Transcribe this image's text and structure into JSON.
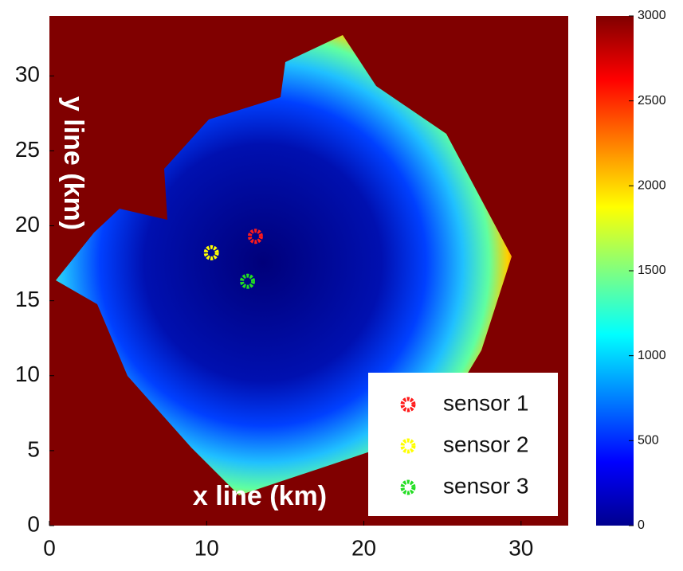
{
  "chart_data": {
    "type": "scatter",
    "xlabel": "x line (km)",
    "ylabel": "y line (km)",
    "xlim": [
      0,
      33
    ],
    "ylim": [
      0,
      34
    ],
    "xticks": [
      0,
      10,
      20,
      30
    ],
    "yticks": [
      0,
      5,
      10,
      15,
      20,
      25,
      30
    ],
    "colorbar": {
      "colormap": "jet",
      "lim": [
        0,
        3000
      ],
      "ticks": [
        0,
        500,
        1000,
        1500,
        2000,
        2500,
        3000
      ]
    },
    "series": [
      {
        "name": "sensor 1",
        "color": "#ff1a1a",
        "x": [
          13.1
        ],
        "y": [
          19.3
        ]
      },
      {
        "name": "sensor 2",
        "color": "#ffff00",
        "x": [
          10.3
        ],
        "y": [
          18.2
        ]
      },
      {
        "name": "sensor 3",
        "color": "#22dd22",
        "x": [
          12.6
        ],
        "y": [
          16.3
        ]
      }
    ]
  }
}
